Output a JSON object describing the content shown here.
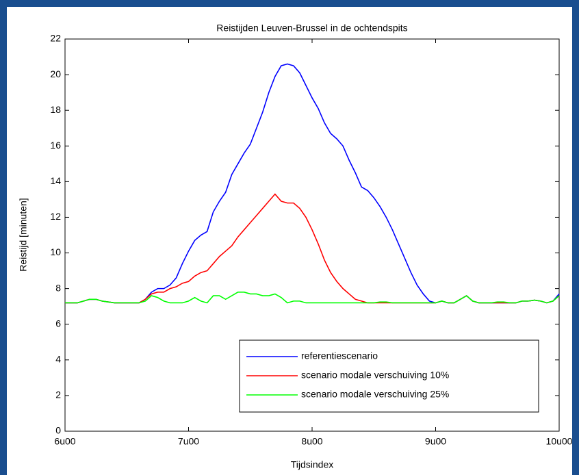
{
  "chart_data": {
    "type": "line",
    "title": "Reistijden Leuven-Brussel in de ochtendspits",
    "x_label": "Tijdsindex",
    "y_label": "Reistijd [minuten]",
    "x": [
      6.0,
      6.05,
      6.1,
      6.15,
      6.2,
      6.25,
      6.3,
      6.35,
      6.4,
      6.45,
      6.5,
      6.55,
      6.6,
      6.65,
      6.7,
      6.75,
      6.8,
      6.85,
      6.9,
      6.95,
      7.0,
      7.05,
      7.1,
      7.15,
      7.2,
      7.25,
      7.3,
      7.35,
      7.4,
      7.45,
      7.5,
      7.55,
      7.6,
      7.65,
      7.7,
      7.75,
      7.8,
      7.85,
      7.9,
      7.95,
      8.0,
      8.05,
      8.1,
      8.15,
      8.2,
      8.25,
      8.3,
      8.35,
      8.4,
      8.45,
      8.5,
      8.55,
      8.6,
      8.65,
      8.7,
      8.75,
      8.8,
      8.85,
      8.9,
      8.95,
      9.0,
      9.05,
      9.1,
      9.15,
      9.2,
      9.25,
      9.3,
      9.35,
      9.4,
      9.45,
      9.5,
      9.55,
      9.6,
      9.65,
      9.7,
      9.75,
      9.8,
      9.85,
      9.9,
      9.95,
      10.0
    ],
    "series": [
      {
        "name": "referentiescenario",
        "color": "#0000ff",
        "values": [
          7.2,
          7.2,
          7.2,
          7.3,
          7.4,
          7.4,
          7.3,
          7.25,
          7.2,
          7.2,
          7.2,
          7.2,
          7.2,
          7.4,
          7.8,
          8.0,
          8.0,
          8.2,
          8.6,
          9.4,
          10.1,
          10.7,
          11.0,
          11.2,
          12.3,
          12.9,
          13.4,
          14.4,
          15.0,
          15.6,
          16.1,
          17.0,
          17.9,
          19.0,
          19.9,
          20.5,
          20.6,
          20.5,
          20.1,
          19.4,
          18.7,
          18.1,
          17.3,
          16.7,
          16.4,
          16.0,
          15.2,
          14.5,
          13.7,
          13.5,
          13.1,
          12.6,
          12.0,
          11.3,
          10.5,
          9.7,
          8.9,
          8.2,
          7.7,
          7.3,
          7.2,
          7.3,
          7.2,
          7.2,
          7.4,
          7.6,
          7.3,
          7.2,
          7.2,
          7.2,
          7.2,
          7.2,
          7.2,
          7.2,
          7.3,
          7.3,
          7.35,
          7.3,
          7.2,
          7.3,
          7.7
        ]
      },
      {
        "name": "scenario modale verschuiving 10%",
        "color": "#ff0000",
        "values": [
          7.2,
          7.2,
          7.2,
          7.3,
          7.4,
          7.4,
          7.3,
          7.25,
          7.2,
          7.2,
          7.2,
          7.2,
          7.2,
          7.4,
          7.7,
          7.8,
          7.8,
          8.0,
          8.1,
          8.3,
          8.4,
          8.7,
          8.9,
          9.0,
          9.4,
          9.8,
          10.1,
          10.4,
          10.9,
          11.3,
          11.7,
          12.1,
          12.5,
          12.9,
          13.3,
          12.9,
          12.8,
          12.8,
          12.5,
          12.0,
          11.3,
          10.5,
          9.6,
          8.9,
          8.4,
          8.0,
          7.7,
          7.4,
          7.3,
          7.2,
          7.2,
          7.2,
          7.2,
          7.2,
          7.2,
          7.2,
          7.2,
          7.2,
          7.2,
          7.2,
          7.2,
          7.3,
          7.2,
          7.2,
          7.4,
          7.6,
          7.3,
          7.2,
          7.2,
          7.2,
          7.2,
          7.2,
          7.2,
          7.2,
          7.3,
          7.3,
          7.35,
          7.3,
          7.2,
          7.3,
          7.6
        ]
      },
      {
        "name": "scenario modale verschuiving 25%",
        "color": "#00ff00",
        "values": [
          7.2,
          7.2,
          7.2,
          7.3,
          7.4,
          7.4,
          7.3,
          7.25,
          7.2,
          7.2,
          7.2,
          7.2,
          7.2,
          7.3,
          7.6,
          7.5,
          7.3,
          7.2,
          7.2,
          7.2,
          7.3,
          7.5,
          7.3,
          7.2,
          7.6,
          7.6,
          7.4,
          7.6,
          7.8,
          7.8,
          7.7,
          7.7,
          7.6,
          7.6,
          7.7,
          7.5,
          7.2,
          7.3,
          7.3,
          7.2,
          7.2,
          7.2,
          7.2,
          7.2,
          7.2,
          7.2,
          7.2,
          7.2,
          7.2,
          7.2,
          7.2,
          7.25,
          7.25,
          7.2,
          7.2,
          7.2,
          7.2,
          7.2,
          7.2,
          7.2,
          7.2,
          7.3,
          7.2,
          7.2,
          7.4,
          7.6,
          7.3,
          7.2,
          7.2,
          7.2,
          7.25,
          7.25,
          7.2,
          7.2,
          7.3,
          7.3,
          7.35,
          7.3,
          7.2,
          7.3,
          7.6
        ]
      }
    ],
    "xlim": [
      6,
      10
    ],
    "xticks": [
      {
        "value": 6,
        "label": "6u00"
      },
      {
        "value": 7,
        "label": "7u00"
      },
      {
        "value": 8,
        "label": "8u00"
      },
      {
        "value": 9,
        "label": "9u00"
      },
      {
        "value": 10,
        "label": "10u00"
      }
    ],
    "ylim": [
      0,
      22
    ],
    "yticks": [
      0,
      2,
      4,
      6,
      8,
      10,
      12,
      14,
      16,
      18,
      20,
      22
    ],
    "grid": false,
    "legend": "lower right"
  }
}
